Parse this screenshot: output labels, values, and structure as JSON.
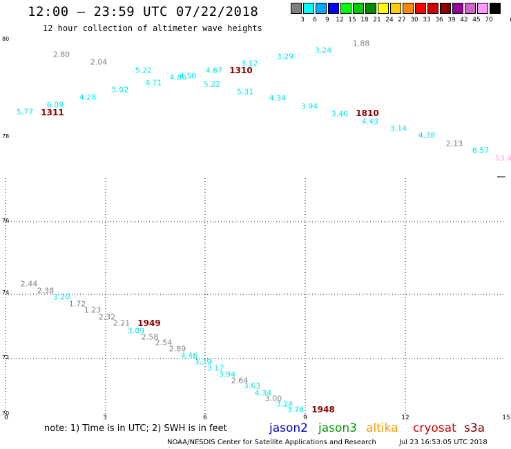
{
  "header": {
    "title": "12:00 – 23:59 UTC 07/22/2018",
    "subtitle": "12 hour collection of altimeter wave heights"
  },
  "legend": {
    "unit": "(ft)",
    "bins": [
      {
        "label": "3",
        "color": "#808080"
      },
      {
        "label": "6",
        "color": "#00ffff"
      },
      {
        "label": "9",
        "color": "#00aaff"
      },
      {
        "label": "12",
        "color": "#0000ff"
      },
      {
        "label": "15",
        "color": "#00ff00"
      },
      {
        "label": "18",
        "color": "#00cc00"
      },
      {
        "label": "21",
        "color": "#008800"
      },
      {
        "label": "24",
        "color": "#ffff00"
      },
      {
        "label": "27",
        "color": "#ffcc00"
      },
      {
        "label": "30",
        "color": "#ff8800"
      },
      {
        "label": "33",
        "color": "#ff0000"
      },
      {
        "label": "36",
        "color": "#cc0000"
      },
      {
        "label": "39",
        "color": "#880000"
      },
      {
        "label": "42",
        "color": "#990099"
      },
      {
        "label": "45",
        "color": "#cc66cc"
      },
      {
        "label": "70",
        "color": "#ff99ff"
      },
      {
        "label": "",
        "color": "#000000"
      }
    ]
  },
  "map": {
    "y_ticks": [
      "80",
      "78",
      "76",
      "74",
      "72",
      "70"
    ],
    "x_ticks": [
      "0",
      "3",
      "6",
      "9",
      "12",
      "15"
    ]
  },
  "observations": [
    {
      "text": "2.80",
      "color": "#808080"
    },
    {
      "text": "2.04",
      "color": "#808080"
    },
    {
      "text": "5.22",
      "color": "#00e5e5"
    },
    {
      "text": "4.86",
      "color": "#00e5e5"
    },
    {
      "text": "4.50",
      "color": "#00e5e5"
    },
    {
      "text": "4.67",
      "color": "#00e5e5"
    },
    {
      "text": "3.12",
      "color": "#00e5e5"
    },
    {
      "text": "3.29",
      "color": "#00e5e5"
    },
    {
      "text": "3.24",
      "color": "#00e5e5"
    },
    {
      "text": "1.88",
      "color": "#808080"
    },
    {
      "text": "5.77",
      "color": "#00e5e5"
    },
    {
      "text": "6.09",
      "color": "#00e5e5"
    },
    {
      "text": "4.28",
      "color": "#00e5e5"
    },
    {
      "text": "5.02",
      "color": "#00e5e5"
    },
    {
      "text": "4.71",
      "color": "#00e5e5"
    },
    {
      "text": "5.22",
      "color": "#00e5e5"
    },
    {
      "text": "5.31",
      "color": "#00e5e5"
    },
    {
      "text": "4.34",
      "color": "#00e5e5"
    },
    {
      "text": "3.94",
      "color": "#00e5e5"
    },
    {
      "text": "3.46",
      "color": "#00e5e5"
    },
    {
      "text": "4.43",
      "color": "#00e5e5"
    },
    {
      "text": "3.14",
      "color": "#00e5e5"
    },
    {
      "text": "4.38",
      "color": "#00e5e5"
    },
    {
      "text": "2.13",
      "color": "#808080"
    },
    {
      "text": "6.57",
      "color": "#00e5e5"
    },
    {
      "text": "53.4",
      "color": "#ff99dd"
    },
    {
      "text": "2.44",
      "color": "#808080"
    },
    {
      "text": "2.38",
      "color": "#808080"
    },
    {
      "text": "3.20",
      "color": "#00e5e5"
    },
    {
      "text": "1.72",
      "color": "#808080"
    },
    {
      "text": "1.23",
      "color": "#808080"
    },
    {
      "text": "2.32",
      "color": "#808080"
    },
    {
      "text": "2.21",
      "color": "#808080"
    },
    {
      "text": "3.09",
      "color": "#00e5e5"
    },
    {
      "text": "2.58",
      "color": "#808080"
    },
    {
      "text": "2.54",
      "color": "#808080"
    },
    {
      "text": "2.89",
      "color": "#808080"
    },
    {
      "text": "4.46",
      "color": "#00e5e5"
    },
    {
      "text": "3.39",
      "color": "#00e5e5"
    },
    {
      "text": "3.17",
      "color": "#00e5e5"
    },
    {
      "text": "3.94",
      "color": "#00e5e5"
    },
    {
      "text": "2.64",
      "color": "#808080"
    },
    {
      "text": "3.63",
      "color": "#00e5e5"
    },
    {
      "text": "4.34",
      "color": "#00e5e5"
    },
    {
      "text": "3.00",
      "color": "#808080"
    },
    {
      "text": "3.24",
      "color": "#00e5e5"
    },
    {
      "text": "3.76",
      "color": "#00e5e5"
    }
  ],
  "pass_times": [
    {
      "text": "1311",
      "color": "#880000"
    },
    {
      "text": "1310",
      "color": "#880000"
    },
    {
      "text": "1810",
      "color": "#880000"
    },
    {
      "text": "1949",
      "color": "#880000"
    },
    {
      "text": "1948",
      "color": "#880000"
    }
  ],
  "footer": {
    "note": "note:  1) Time is in UTC;  2) SWH is in feet",
    "satellites": [
      {
        "name": "jason2",
        "color": "#0000cc"
      },
      {
        "name": "jason3",
        "color": "#009900"
      },
      {
        "name": "altika",
        "color": "#ff9900"
      },
      {
        "name": "cryosat",
        "color": "#cc0000"
      },
      {
        "name": "s3a",
        "color": "#880000"
      }
    ],
    "credit": "NOAA/NESDIS Center for Satellite Applications and Research",
    "timestamp": "Jul 23 16:53:05 UTC 2018"
  }
}
